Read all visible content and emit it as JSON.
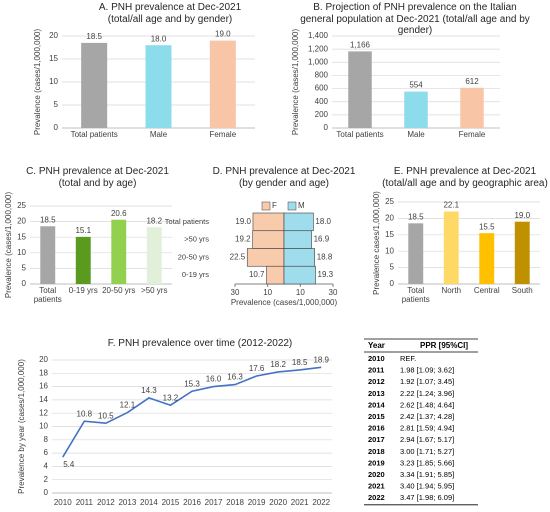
{
  "chart_data": [
    {
      "type": "bar",
      "title": "A. PNH prevalence at Dec-2021 (total/all age and by gender)",
      "y_label": "Prevalence (cases/1,000,000)",
      "categories": [
        "Total patients",
        "Male",
        "Female"
      ],
      "values": [
        18.5,
        18,
        19
      ],
      "value_labels": [
        "18.5",
        "18.0",
        "19.0"
      ],
      "colors": [
        "#a6a6a6",
        "#8ddcec",
        "#f8c6a6"
      ],
      "ylim": [
        0,
        20
      ],
      "yticks": [
        0,
        5,
        10,
        15,
        20
      ],
      "grid": true
    },
    {
      "type": "bar",
      "title": "B. Projection of PNH prevalence on the Italian general population at Dec-2021 (total/all age and by gender)",
      "y_label": "Prevalence (cases/1,000,000)",
      "categories": [
        "Total patients",
        "Male",
        "Female"
      ],
      "values": [
        1166,
        554,
        612
      ],
      "value_labels": [
        "1,166",
        "554",
        "612"
      ],
      "colors": [
        "#a6a6a6",
        "#8ddcec",
        "#f8c6a6"
      ],
      "ylim": [
        0,
        1400
      ],
      "yticks": [
        0,
        200,
        400,
        600,
        800,
        {
          "value": 1000,
          "label": "1,000"
        },
        {
          "value": 1200,
          "label": "1,200"
        },
        {
          "value": 1400,
          "label": "1,400"
        }
      ],
      "grid": true
    },
    {
      "type": "bar",
      "title": "C. PNH prevalence at Dec-2021 (total and by age)",
      "y_label": "Prevalence (cases/1,000,000)",
      "categories": [
        "Total patients",
        "0-19 yrs",
        "20-50 yrs",
        ">50 yrs"
      ],
      "values": [
        18.5,
        15.1,
        20.6,
        18.2
      ],
      "value_labels": [
        "18.5",
        "15.1",
        "20.6",
        "18.2"
      ],
      "colors": [
        "#a6a6a6",
        "#5a9a1e",
        "#92d050",
        "#e2efd9"
      ],
      "ylim": [
        0,
        25
      ],
      "yticks": [
        0,
        5,
        10,
        15,
        20,
        25
      ],
      "grid": true
    },
    {
      "type": "butterfly",
      "title": "D. PNH prevalence at Dec-2021 (by gender and age)",
      "x_label": "Prevalence (cases/1,000,000)",
      "categories": [
        "Total patients",
        ">50 yrs",
        "20-50 yrs",
        "0-19 yrs"
      ],
      "series": [
        {
          "name": "F",
          "color": "#f8cbad",
          "values": [
            19,
            19.2,
            22.5,
            10.7
          ],
          "value_labels": [
            "19.0",
            "19.2",
            "22.5",
            "10.7"
          ]
        },
        {
          "name": "M",
          "color": "#9fdcec",
          "values": [
            18,
            16.9,
            18.8,
            19.3
          ],
          "value_labels": [
            "18.0",
            "16.9",
            "18.8",
            "19.3"
          ]
        }
      ],
      "xlim": [
        -30,
        30
      ],
      "xticks": [
        {
          "value": -30,
          "label": "30"
        },
        {
          "value": -10,
          "label": "10"
        },
        10,
        30
      ]
    },
    {
      "type": "bar",
      "title": "E. PNH prevalence at Dec-2021 (total/all age and by geographic area)",
      "y_label": "Prevalence cases/1,000,000)",
      "categories": [
        "Total patients",
        "North",
        "Central",
        "South"
      ],
      "values": [
        18.5,
        22.1,
        15.5,
        19
      ],
      "value_labels": [
        "18.5",
        "22.1",
        "15.5",
        "19.0"
      ],
      "colors": [
        "#a6a6a6",
        "#ffd966",
        "#ffc000",
        "#bf9000"
      ],
      "ylim": [
        0,
        25
      ],
      "yticks": [
        0,
        5,
        10,
        15,
        20,
        25
      ],
      "grid": true
    },
    {
      "type": "line",
      "title": "F. PNH prevalence over time (2012-2022)",
      "y_label": "Prevalence by year (cases/1,000,000)",
      "categories": [
        "2010",
        "2011",
        "2012",
        "2013",
        "2014",
        "2015",
        "2016",
        "2017",
        "2018",
        "2019",
        "2020",
        "2021",
        "2022"
      ],
      "values": [
        5.4,
        10.8,
        10.5,
        12.1,
        14.3,
        13.2,
        15.3,
        16,
        16.3,
        17.6,
        18.2,
        18.5,
        18.9
      ],
      "value_labels": [
        "5.4",
        "10.8",
        "10.5",
        "12.1",
        "14.3",
        "13.2",
        "15.3",
        "16.0",
        "16.3",
        "17.6",
        "18.2",
        "18.5",
        "18.9"
      ],
      "color": "#4472c4",
      "ylim": [
        0,
        20
      ],
      "yticks": [
        0,
        2,
        4,
        6,
        8,
        10,
        12,
        14,
        16,
        18,
        20
      ],
      "grid": true
    }
  ],
  "table": {
    "columns": [
      "Year",
      "PPR [95%CI]"
    ],
    "rows": [
      [
        "2010",
        "REF."
      ],
      [
        "2011",
        "1.98 [1.09; 3.62]"
      ],
      [
        "2012",
        "1.92 [1.07; 3.45]"
      ],
      [
        "2013",
        "2.22 [1.24; 3.96]"
      ],
      [
        "2014",
        "2.62 [1.48; 4.64]"
      ],
      [
        "2015",
        "2.42 [1.37; 4.28]"
      ],
      [
        "2016",
        "2.81 [1.59; 4.94]"
      ],
      [
        "2017",
        "2.94 [1.67; 5.17]"
      ],
      [
        "2018",
        "3.00 [1.71; 5.27]"
      ],
      [
        "2019",
        "3.23 [1.85; 5.66]"
      ],
      [
        "2020",
        "3.34 [1.91; 5.85]"
      ],
      [
        "2021",
        "3.40 [1.94; 5.95]"
      ],
      [
        "2022",
        "3.47 [1.98; 6.09]"
      ]
    ]
  }
}
